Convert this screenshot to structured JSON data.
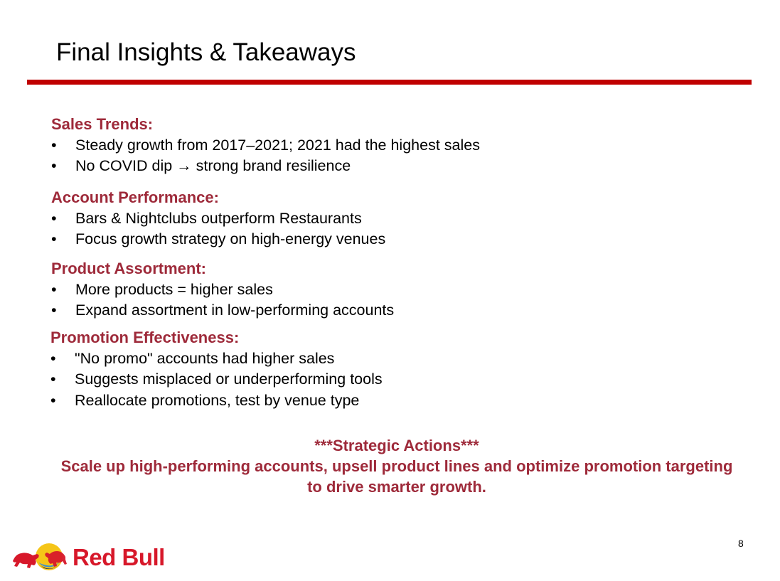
{
  "slide": {
    "title": "Final Insights & Takeaways",
    "page_number": "8"
  },
  "sections": [
    {
      "heading": "Sales Trends:",
      "bullets": [
        "Steady growth from 2017–2021; 2021 had the highest sales",
        "No COVID dip → strong brand resilience"
      ]
    },
    {
      "heading": "Account Performance:",
      "bullets": [
        "Bars & Nightclubs outperform Restaurants",
        "Focus growth strategy on high-energy venues"
      ]
    },
    {
      "heading": "Product Assortment:",
      "bullets": [
        "More products = higher sales",
        "Expand assortment in low-performing accounts"
      ]
    },
    {
      "heading": "Promotion Effectiveness:",
      "bullets": [
        "\"No promo\" accounts had higher sales",
        "Suggests misplaced or underperforming tools",
        "Reallocate promotions, test by venue type"
      ]
    }
  ],
  "bullet_symbol": "•",
  "strategic": {
    "headline": "***Strategic Actions***",
    "body": "Scale up high-performing accounts, upsell product lines and optimize promotion targeting to drive smarter growth."
  },
  "logo": {
    "text": "Red Bull"
  },
  "colors": {
    "accent_red": "#c00000",
    "heading_maroon": "#9e2a3a",
    "brand_red": "#d7182a",
    "brand_yellow": "#f5c518",
    "brand_navy": "#1b2a5e"
  }
}
